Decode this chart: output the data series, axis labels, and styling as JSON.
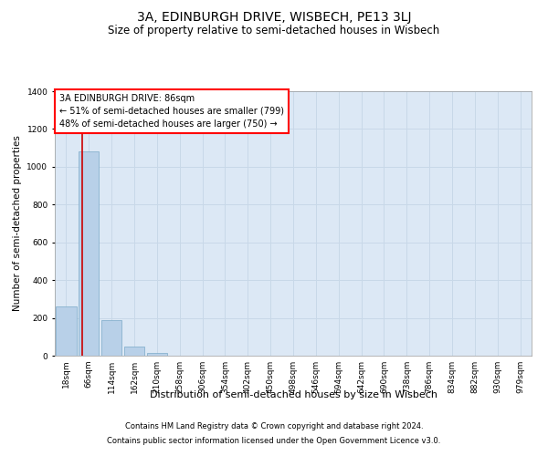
{
  "title": "3A, EDINBURGH DRIVE, WISBECH, PE13 3LJ",
  "subtitle": "Size of property relative to semi-detached houses in Wisbech",
  "xlabel": "Distribution of semi-detached houses by size in Wisbech",
  "ylabel": "Number of semi-detached properties",
  "categories": [
    "18sqm",
    "66sqm",
    "114sqm",
    "162sqm",
    "210sqm",
    "258sqm",
    "306sqm",
    "354sqm",
    "402sqm",
    "450sqm",
    "498sqm",
    "546sqm",
    "594sqm",
    "642sqm",
    "690sqm",
    "738sqm",
    "786sqm",
    "834sqm",
    "882sqm",
    "930sqm",
    "979sqm"
  ],
  "values": [
    260,
    1080,
    190,
    50,
    15,
    2,
    0,
    0,
    0,
    0,
    0,
    0,
    0,
    0,
    0,
    0,
    0,
    0,
    0,
    0,
    0
  ],
  "bar_color": "#b8d0e8",
  "bar_edge_color": "#7aaac8",
  "grid_color": "#c8d8e8",
  "background_color": "#dce8f5",
  "ylim": [
    0,
    1400
  ],
  "yticks": [
    0,
    200,
    400,
    600,
    800,
    1000,
    1200,
    1400
  ],
  "red_line_color": "#cc0000",
  "annotation_text": "3A EDINBURGH DRIVE: 86sqm\n← 51% of semi-detached houses are smaller (799)\n48% of semi-detached houses are larger (750) →",
  "footer_line1": "Contains HM Land Registry data © Crown copyright and database right 2024.",
  "footer_line2": "Contains public sector information licensed under the Open Government Licence v3.0.",
  "title_fontsize": 10,
  "subtitle_fontsize": 8.5,
  "xlabel_fontsize": 8,
  "ylabel_fontsize": 7.5,
  "tick_fontsize": 6.5,
  "annot_fontsize": 7,
  "footer_fontsize": 6,
  "red_line_x": 0.72
}
